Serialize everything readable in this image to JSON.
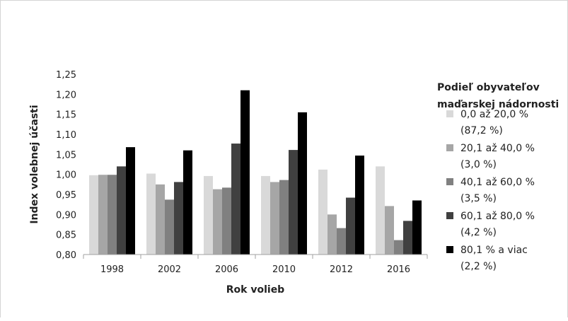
{
  "chart_data": {
    "type": "bar",
    "title": "",
    "xlabel": "Rok volieb",
    "ylabel": "Index volebnej účasti",
    "categories": [
      "1998",
      "2002",
      "2006",
      "2010",
      "2012",
      "2016"
    ],
    "ylim": [
      0.8,
      1.25
    ],
    "yticks": [
      "0,80",
      "0,85",
      "0,90",
      "0,95",
      "1,00",
      "1,05",
      "1,10",
      "1,15",
      "1,20",
      "1,25"
    ],
    "ytick_values": [
      0.8,
      0.85,
      0.9,
      0.95,
      1.0,
      1.05,
      1.1,
      1.15,
      1.2,
      1.25
    ],
    "grid": false,
    "legend_position": "right",
    "legend_title": [
      "Podieľ obyvateľov",
      "maďarskej nádornosti"
    ],
    "series": [
      {
        "name": "0,0 až 20,0 %",
        "note": "(87,2 %)",
        "color": "#d9d9d9",
        "values": [
          0.998,
          1.002,
          0.996,
          0.996,
          1.012,
          1.02
        ]
      },
      {
        "name": "20,1 až 40,0 %",
        "note": "(3,0 %)",
        "color": "#a6a6a6",
        "values": [
          0.999,
          0.975,
          0.963,
          0.981,
          0.9,
          0.921
        ]
      },
      {
        "name": "40,1 až 60,0 %",
        "note": "(3,5 %)",
        "color": "#808080",
        "values": [
          0.999,
          0.937,
          0.967,
          0.986,
          0.866,
          0.836
        ]
      },
      {
        "name": "60,1 až 80,0 %",
        "note": "(4,2 %)",
        "color": "#404040",
        "values": [
          1.02,
          0.981,
          1.077,
          1.061,
          0.942,
          0.884
        ]
      },
      {
        "name": "80,1 % a viac",
        "note": "(2,2 %)",
        "color": "#000000",
        "values": [
          1.068,
          1.06,
          1.21,
          1.155,
          1.047,
          0.935
        ]
      }
    ]
  }
}
